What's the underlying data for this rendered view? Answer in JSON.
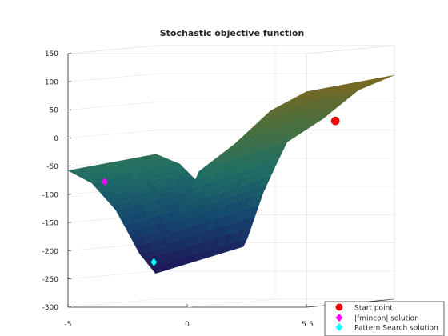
{
  "chart_data": {
    "type": "surface",
    "title": "Stochastic objective function",
    "xlabel": "",
    "ylabel": "",
    "zlabel": "",
    "xlim": [
      -5,
      5
    ],
    "ylim": [
      -5,
      5
    ],
    "zlim": [
      -300,
      150
    ],
    "x_ticks": [
      "-5",
      "0",
      "5"
    ],
    "y_ticks": [
      "5"
    ],
    "z_ticks": [
      "150",
      "100",
      "50",
      "0",
      "-50",
      "-100",
      "-150",
      "-200",
      "-250",
      "-300"
    ],
    "grid": true,
    "legend_position": "bottom-right",
    "surface": {
      "description_profile": [
        {
          "x": -5.0,
          "z": -50
        },
        {
          "x": -4.0,
          "z": -70
        },
        {
          "x": -3.0,
          "z": -115
        },
        {
          "x": -2.0,
          "z": -190
        },
        {
          "x": -1.3,
          "z": -225
        },
        {
          "x": -0.5,
          "z": -130
        },
        {
          "x": 0.5,
          "z": -40
        },
        {
          "x": 2.0,
          "z": 5
        },
        {
          "x": 3.5,
          "z": 60
        },
        {
          "x": 5.0,
          "z": 90
        }
      ],
      "colormap": "cividis-like"
    },
    "series": [
      {
        "name": "Start point",
        "marker": "circle",
        "color": "#ff0000",
        "x": 4.0,
        "y": 1.0,
        "z": 22
      },
      {
        "name": "|fmincon| solution",
        "marker": "diamond",
        "color": "#ff00ff",
        "x": -4.2,
        "y": -3.0,
        "z": -80
      },
      {
        "name": "Pattern Search solution",
        "marker": "diamond",
        "color": "#00ffff",
        "x": -1.4,
        "y": -5.0,
        "z": -220
      }
    ]
  }
}
